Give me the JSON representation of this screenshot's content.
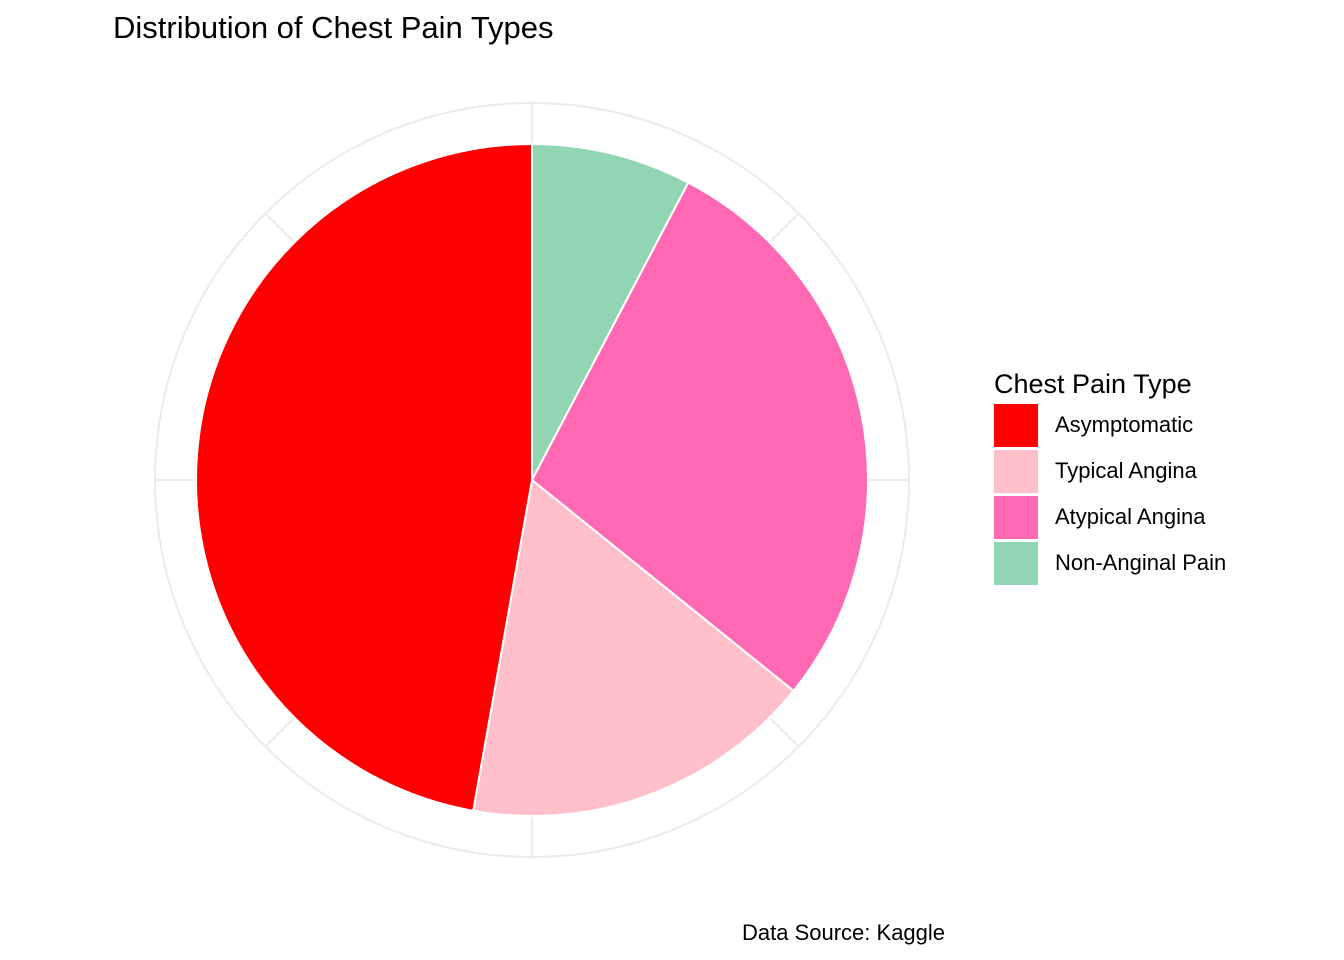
{
  "chart_data": {
    "type": "pie",
    "title": "Distribution of Chest Pain Types",
    "caption": "Data Source: Kaggle",
    "legend": {
      "title": "Chest Pain Type",
      "position": "right"
    },
    "categories": [
      "Asymptomatic",
      "Typical Angina",
      "Atypical Angina",
      "Non-Anginal Pain"
    ],
    "values": [
      47.2,
      17.0,
      28.1,
      7.7
    ],
    "colors": [
      "#ff0000",
      "#ffc0cb",
      "#ff69b4",
      "#92d5b5"
    ],
    "slice_order_clockwise_from_top": [
      "Non-Anginal Pain",
      "Atypical Angina",
      "Typical Angina",
      "Asymptomatic"
    ],
    "grid": true
  }
}
